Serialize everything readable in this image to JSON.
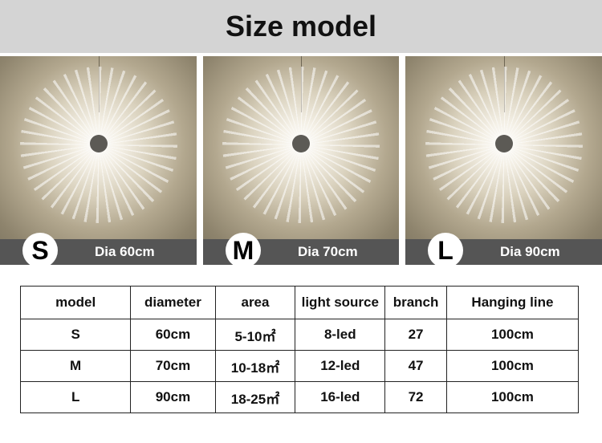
{
  "header": {
    "title": "Size model"
  },
  "panels": [
    {
      "size": "S",
      "label": "Dia 60cm"
    },
    {
      "size": "M",
      "label": "Dia 70cm"
    },
    {
      "size": "L",
      "label": "Dia 90cm"
    }
  ],
  "table": {
    "header": [
      "model",
      "diameter",
      "area",
      "light source",
      "branch",
      "Hanging line"
    ],
    "rows": [
      [
        "S",
        "60cm",
        "5-10㎡",
        "8-led",
        "27",
        "100cm"
      ],
      [
        "M",
        "70cm",
        "10-18㎡",
        "12-led",
        "47",
        "100cm"
      ],
      [
        "L",
        "90cm",
        "18-25㎡",
        "16-led",
        "72",
        "100cm"
      ]
    ]
  }
}
